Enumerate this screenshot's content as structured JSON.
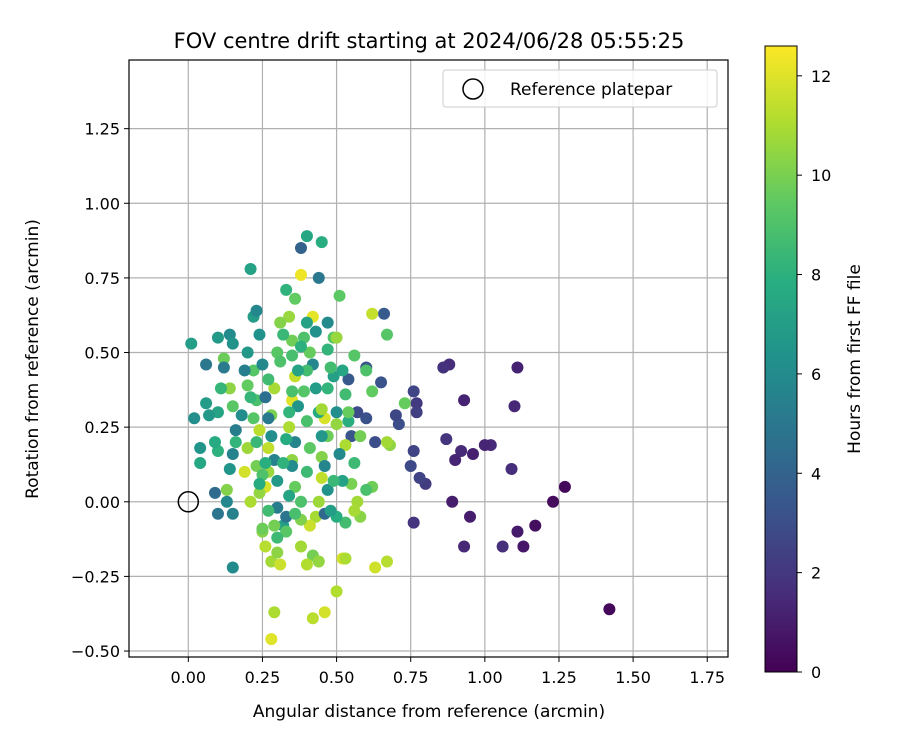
{
  "chart_data": {
    "type": "scatter",
    "title": "FOV centre drift starting at 2024/06/28 05:55:25",
    "xlabel": "Angular distance from reference (arcmin)",
    "ylabel": "Rotation from reference (arcmin)",
    "xlim": [
      -0.2,
      1.82
    ],
    "ylim": [
      -0.52,
      1.48
    ],
    "xticks": [
      0.0,
      0.25,
      0.5,
      0.75,
      1.0,
      1.25,
      1.5,
      1.75
    ],
    "xtick_labels": [
      "0.00",
      "0.25",
      "0.50",
      "0.75",
      "1.00",
      "1.25",
      "1.50",
      "1.75"
    ],
    "yticks": [
      -0.5,
      -0.25,
      0.0,
      0.25,
      0.5,
      0.75,
      1.0,
      1.25
    ],
    "ytick_labels": [
      "−0.50",
      "−0.25",
      "0.00",
      "0.25",
      "0.50",
      "0.75",
      "1.00",
      "1.25"
    ],
    "grid": true,
    "legend": {
      "placement": "top-right",
      "entries": [
        "Reference platepar"
      ]
    },
    "reference_point": {
      "label": "Reference platepar",
      "x": 0.0,
      "y": 0.0,
      "marker": "open-circle"
    },
    "colorbar": {
      "label": "Hours from first FF file",
      "range": [
        0,
        12.6
      ],
      "ticks": [
        0,
        2,
        4,
        6,
        8,
        10,
        12
      ],
      "tick_labels": [
        "0",
        "2",
        "4",
        "6",
        "8",
        "10",
        "12"
      ],
      "colormap": "viridis"
    },
    "series": [
      {
        "color_by": "hours",
        "points": [
          [
            1.42,
            -0.36,
            0.2
          ],
          [
            1.27,
            0.05,
            0.3
          ],
          [
            1.23,
            0.0,
            0.4
          ],
          [
            1.17,
            -0.08,
            0.5
          ],
          [
            1.13,
            -0.15,
            0.8
          ],
          [
            1.11,
            -0.1,
            0.9
          ],
          [
            1.11,
            0.45,
            1.2
          ],
          [
            1.1,
            0.32,
            1.4
          ],
          [
            1.09,
            0.11,
            1.6
          ],
          [
            1.06,
            -0.15,
            1.7
          ],
          [
            1.02,
            0.19,
            1.5
          ],
          [
            1.0,
            0.19,
            1.3
          ],
          [
            0.96,
            0.16,
            1.1
          ],
          [
            0.95,
            -0.05,
            1.0
          ],
          [
            0.93,
            0.34,
            1.2
          ],
          [
            0.93,
            -0.15,
            1.4
          ],
          [
            0.92,
            0.17,
            1.5
          ],
          [
            0.9,
            0.14,
            1.3
          ],
          [
            0.89,
            0.0,
            1.0
          ],
          [
            0.88,
            0.46,
            1.6
          ],
          [
            0.86,
            0.45,
            1.8
          ],
          [
            0.87,
            0.21,
            1.9
          ],
          [
            0.8,
            0.06,
            2.2
          ],
          [
            0.78,
            0.08,
            2.5
          ],
          [
            0.77,
            0.33,
            2.1
          ],
          [
            0.76,
            -0.07,
            1.9
          ],
          [
            0.75,
            0.12,
            2.8
          ],
          [
            0.76,
            0.17,
            2.5
          ],
          [
            0.77,
            0.3,
            2.3
          ],
          [
            0.76,
            0.37,
            2.6
          ],
          [
            0.71,
            0.26,
            3.0
          ],
          [
            0.7,
            0.29,
            2.7
          ],
          [
            0.65,
            0.4,
            3.2
          ],
          [
            0.66,
            0.63,
            3.6
          ],
          [
            0.63,
            0.2,
            3.0
          ],
          [
            0.6,
            0.28,
            3.1
          ],
          [
            0.6,
            0.45,
            3.4
          ],
          [
            0.57,
            0.3,
            2.9
          ],
          [
            0.55,
            0.22,
            3.3
          ],
          [
            0.54,
            0.41,
            3.5
          ],
          [
            0.62,
            0.63,
            11.5
          ],
          [
            0.62,
            0.37,
            9.5
          ],
          [
            0.62,
            0.05,
            9.8
          ],
          [
            0.63,
            -0.22,
            11.7
          ],
          [
            0.67,
            -0.2,
            11.2
          ],
          [
            0.67,
            0.56,
            9.2
          ],
          [
            0.68,
            0.19,
            10.4
          ],
          [
            0.73,
            0.33,
            9.6
          ],
          [
            0.67,
            0.2,
            10.8
          ],
          [
            0.6,
            0.44,
            9.0
          ],
          [
            0.58,
            -0.05,
            10.3
          ],
          [
            0.57,
            0.0,
            10.8
          ],
          [
            0.56,
            -0.03,
            10.9
          ],
          [
            0.55,
            0.06,
            10.0
          ],
          [
            0.53,
            0.19,
            11.0
          ],
          [
            0.53,
            -0.07,
            8.7
          ],
          [
            0.52,
            -0.19,
            11.8
          ],
          [
            0.5,
            -0.3,
            11.1
          ],
          [
            0.53,
            -0.19,
            11.0
          ],
          [
            0.51,
            0.69,
            9.4
          ],
          [
            0.49,
            0.55,
            9.1
          ],
          [
            0.5,
            0.55,
            10.6
          ],
          [
            0.47,
            0.38,
            8.2
          ],
          [
            0.46,
            0.28,
            11.9
          ],
          [
            0.47,
            0.22,
            9.7
          ],
          [
            0.45,
            0.15,
            10.2
          ],
          [
            0.45,
            0.08,
            11.4
          ],
          [
            0.44,
            0.0,
            10.7
          ],
          [
            0.43,
            -0.05,
            10.9
          ],
          [
            0.41,
            -0.08,
            11.6
          ],
          [
            0.42,
            -0.18,
            9.9
          ],
          [
            0.44,
            -0.2,
            10.5
          ],
          [
            0.46,
            -0.37,
            11.8
          ],
          [
            0.42,
            -0.39,
            11.3
          ],
          [
            0.4,
            -0.21,
            11.1
          ],
          [
            0.38,
            -0.15,
            10.8
          ],
          [
            0.38,
            -0.06,
            10.1
          ],
          [
            0.36,
            0.05,
            9.6
          ],
          [
            0.35,
            0.14,
            10.4
          ],
          [
            0.34,
            0.25,
            11.0
          ],
          [
            0.35,
            0.34,
            12.0
          ],
          [
            0.36,
            0.42,
            11.5
          ],
          [
            0.35,
            0.54,
            9.8
          ],
          [
            0.34,
            0.62,
            10.6
          ],
          [
            0.38,
            0.76,
            12.3
          ],
          [
            0.42,
            0.62,
            12.1
          ],
          [
            0.36,
            0.68,
            9.5
          ],
          [
            0.33,
            0.71,
            8.1
          ],
          [
            0.31,
            0.6,
            10.2
          ],
          [
            0.3,
            0.5,
            9.3
          ],
          [
            0.29,
            0.38,
            10.9
          ],
          [
            0.28,
            0.29,
            10.0
          ],
          [
            0.27,
            0.18,
            11.4
          ],
          [
            0.27,
            0.1,
            10.6
          ],
          [
            0.26,
            0.05,
            11.9
          ],
          [
            0.25,
            -0.1,
            10.2
          ],
          [
            0.26,
            -0.15,
            11.2
          ],
          [
            0.28,
            -0.2,
            10.8
          ],
          [
            0.3,
            -0.17,
            10.4
          ],
          [
            0.31,
            -0.21,
            11.6
          ],
          [
            0.29,
            -0.37,
            11.0
          ],
          [
            0.28,
            -0.46,
            12.0
          ],
          [
            0.25,
            -0.09,
            9.7
          ],
          [
            0.24,
            0.03,
            10.5
          ],
          [
            0.23,
            0.12,
            9.9
          ],
          [
            0.24,
            0.24,
            11.3
          ],
          [
            0.23,
            0.34,
            8.9
          ],
          [
            0.22,
            0.44,
            9.2
          ],
          [
            0.2,
            0.39,
            9.5
          ],
          [
            0.2,
            0.18,
            10.7
          ],
          [
            0.19,
            0.1,
            11.8
          ],
          [
            0.21,
            0.0,
            11.0
          ],
          [
            0.13,
            0.04,
            10.2
          ],
          [
            0.16,
            0.2,
            8.2
          ],
          [
            0.15,
            0.32,
            9.3
          ],
          [
            0.14,
            0.38,
            10.4
          ],
          [
            0.12,
            0.48,
            9.7
          ],
          [
            0.11,
            0.38,
            8.3
          ],
          [
            0.1,
            0.3,
            7.3
          ],
          [
            0.1,
            0.17,
            8.0
          ],
          [
            0.09,
            0.2,
            7.6
          ],
          [
            0.07,
            0.29,
            6.7
          ],
          [
            0.06,
            0.33,
            6.9
          ],
          [
            0.04,
            0.13,
            7.5
          ],
          [
            0.04,
            0.18,
            6.5
          ],
          [
            0.02,
            0.28,
            6.2
          ],
          [
            0.01,
            0.53,
            7.0
          ],
          [
            0.06,
            0.46,
            5.0
          ],
          [
            0.1,
            0.55,
            6.8
          ],
          [
            0.12,
            0.45,
            5.2
          ],
          [
            0.14,
            0.56,
            6.0
          ],
          [
            0.15,
            0.53,
            6.4
          ],
          [
            0.15,
            -0.22,
            6.0
          ],
          [
            0.15,
            -0.04,
            5.5
          ],
          [
            0.1,
            -0.04,
            4.9
          ],
          [
            0.09,
            0.03,
            4.4
          ],
          [
            0.13,
            0.0,
            5.8
          ],
          [
            0.14,
            0.11,
            6.5
          ],
          [
            0.15,
            0.16,
            5.6
          ],
          [
            0.16,
            0.24,
            5.3
          ],
          [
            0.18,
            0.29,
            6.1
          ],
          [
            0.19,
            0.44,
            5.4
          ],
          [
            0.2,
            0.5,
            6.7
          ],
          [
            0.21,
            0.78,
            7.2
          ],
          [
            0.22,
            0.62,
            6.9
          ],
          [
            0.23,
            0.64,
            5.8
          ],
          [
            0.24,
            0.56,
            6.3
          ],
          [
            0.25,
            0.46,
            5.9
          ],
          [
            0.26,
            0.35,
            4.6
          ],
          [
            0.27,
            0.28,
            5.1
          ],
          [
            0.28,
            0.22,
            6.2
          ],
          [
            0.29,
            0.14,
            5.6
          ],
          [
            0.3,
            0.07,
            6.8
          ],
          [
            0.3,
            -0.02,
            5.3
          ],
          [
            0.32,
            -0.08,
            7.0
          ],
          [
            0.33,
            -0.05,
            4.9
          ],
          [
            0.34,
            0.02,
            7.4
          ],
          [
            0.35,
            0.12,
            6.1
          ],
          [
            0.36,
            0.2,
            5.7
          ],
          [
            0.37,
            0.32,
            6.5
          ],
          [
            0.38,
            0.85,
            4.0
          ],
          [
            0.4,
            0.89,
            7.5
          ],
          [
            0.45,
            0.87,
            7.8
          ],
          [
            0.44,
            0.75,
            5.0
          ],
          [
            0.43,
            0.57,
            6.3
          ],
          [
            0.42,
            0.46,
            5.8
          ],
          [
            0.43,
            0.38,
            6.9
          ],
          [
            0.44,
            0.3,
            7.6
          ],
          [
            0.45,
            0.22,
            6.6
          ],
          [
            0.46,
            0.12,
            5.7
          ],
          [
            0.47,
            0.04,
            6.4
          ],
          [
            0.46,
            -0.04,
            4.3
          ],
          [
            0.47,
            0.6,
            6.0
          ],
          [
            0.49,
            0.42,
            7.1
          ],
          [
            0.5,
            0.3,
            6.2
          ],
          [
            0.51,
            0.16,
            5.9
          ],
          [
            0.52,
            0.07,
            7.2
          ],
          [
            0.49,
            0.07,
            8.4
          ],
          [
            0.5,
            -0.05,
            7.8
          ],
          [
            0.48,
            -0.03,
            7.0
          ],
          [
            0.27,
            0.41,
            8.6
          ],
          [
            0.31,
            0.47,
            9.0
          ],
          [
            0.32,
            0.56,
            8.4
          ],
          [
            0.35,
            0.49,
            8.8
          ],
          [
            0.39,
            0.55,
            9.0
          ],
          [
            0.41,
            0.5,
            9.6
          ],
          [
            0.4,
            0.44,
            8.7
          ],
          [
            0.39,
            0.37,
            9.2
          ],
          [
            0.4,
            0.27,
            8.9
          ],
          [
            0.41,
            0.18,
            9.4
          ],
          [
            0.4,
            0.1,
            8.5
          ],
          [
            0.38,
            0.0,
            9.0
          ],
          [
            0.36,
            -0.04,
            8.8
          ],
          [
            0.33,
            -0.1,
            9.3
          ],
          [
            0.3,
            -0.12,
            8.5
          ],
          [
            0.29,
            -0.08,
            9.9
          ],
          [
            0.27,
            -0.03,
            8.6
          ],
          [
            0.25,
            0.09,
            9.0
          ],
          [
            0.23,
            0.2,
            8.4
          ],
          [
            0.22,
            0.28,
            9.2
          ],
          [
            0.21,
            0.35,
            8.3
          ],
          [
            0.24,
            0.06,
            7.7
          ],
          [
            0.26,
            0.13,
            7.9
          ],
          [
            0.32,
            0.13,
            8.1
          ],
          [
            0.33,
            0.21,
            7.7
          ],
          [
            0.34,
            0.3,
            8.2
          ],
          [
            0.35,
            0.37,
            8.9
          ],
          [
            0.37,
            0.44,
            7.3
          ],
          [
            0.38,
            0.52,
            8.0
          ],
          [
            0.4,
            0.6,
            7.2
          ],
          [
            0.47,
            0.51,
            8.2
          ],
          [
            0.48,
            0.45,
            8.7
          ],
          [
            0.52,
            0.44,
            7.4
          ],
          [
            0.53,
            0.36,
            8.6
          ],
          [
            0.54,
            0.27,
            7.9
          ],
          [
            0.56,
            0.13,
            8.5
          ],
          [
            0.58,
            0.22,
            9.9
          ],
          [
            0.6,
            0.04,
            8.9
          ],
          [
            0.54,
            0.3,
            9.6
          ],
          [
            0.56,
            0.49,
            9.2
          ],
          [
            0.5,
            0.26,
            10.5
          ],
          [
            0.45,
            0.31,
            10.8
          ]
        ]
      }
    ]
  }
}
